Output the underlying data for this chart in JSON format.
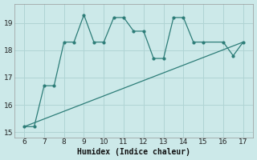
{
  "xlabel": "Humidex (Indice chaleur)",
  "bg_color": "#cce9e9",
  "line_color": "#2d7d78",
  "grid_color": "#b0d4d4",
  "x_data": [
    6,
    6.5,
    7,
    7.5,
    8,
    8.5,
    9,
    9.5,
    10,
    10.5,
    11,
    11.5,
    12,
    12.5,
    13,
    13.5,
    14,
    14.5,
    15,
    16,
    16.5,
    17
  ],
  "y_data": [
    15.2,
    15.2,
    16.7,
    16.7,
    18.3,
    18.3,
    19.3,
    18.3,
    18.3,
    19.2,
    19.2,
    18.7,
    18.7,
    17.7,
    17.7,
    19.2,
    19.2,
    18.3,
    18.3,
    18.3,
    17.8,
    18.3
  ],
  "trend_x": [
    6,
    17
  ],
  "trend_y": [
    15.2,
    18.3
  ],
  "xlim": [
    5.5,
    17.5
  ],
  "ylim": [
    14.8,
    19.7
  ],
  "xticks": [
    6,
    7,
    8,
    9,
    10,
    11,
    12,
    13,
    14,
    15,
    16,
    17
  ],
  "yticks": [
    15,
    16,
    17,
    18,
    19
  ],
  "marker": ".",
  "marker_size": 4,
  "line_width": 1.0
}
